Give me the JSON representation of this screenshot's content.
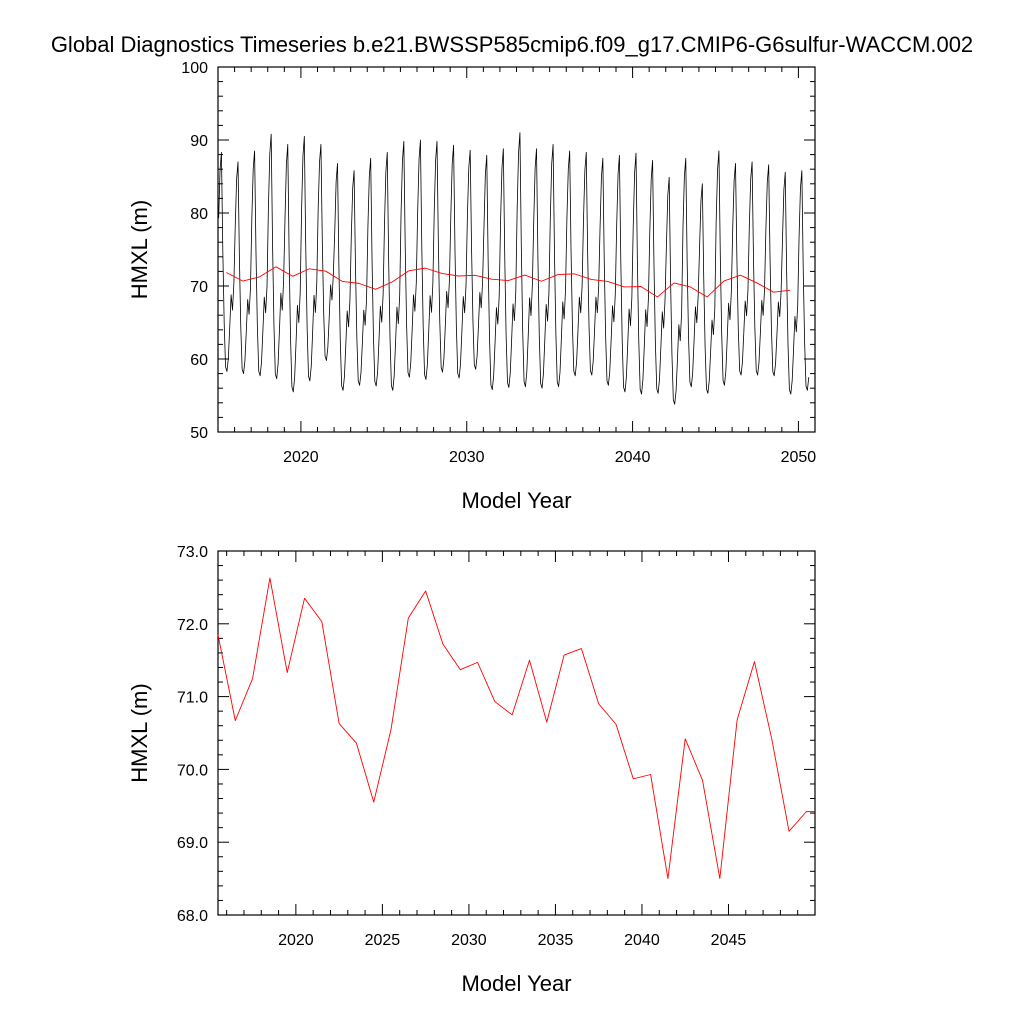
{
  "figure": {
    "title": "Global Diagnostics Timeseries b.e21.BWSSP585cmip6.f09_g17.CMIP6-G6sulfur-WACCM.002"
  },
  "chart_data": [
    {
      "type": "line",
      "title": "Global Diagnostics Timeseries b.e21.BWSSP585cmip6.f09_g17.CMIP6-G6sulfur-WACCM.002",
      "xlabel": "Model Year",
      "ylabel": "HMXL (m)",
      "xlim": [
        2015,
        2051
      ],
      "ylim": [
        50,
        100
      ],
      "xticks": [
        2020,
        2030,
        2040,
        2050
      ],
      "yticks": [
        50,
        60,
        70,
        80,
        90,
        100
      ],
      "ytick_labels": [
        "50",
        "60",
        "70",
        "80",
        "90",
        "100"
      ],
      "grid": false,
      "monthly_series": {
        "color": "#000000",
        "x_start": 2015.04,
        "x_step": 0.0833333,
        "description_values": "monthly values, annual cycle with winter maxima",
        "annual_maxima": [
          88.3,
          87.0,
          88.5,
          90.8,
          89.4,
          90.5,
          89.4,
          86.8,
          85.8,
          87.5,
          88.3,
          89.8,
          90.0,
          89.8,
          89.3,
          88.6,
          87.9,
          88.8,
          91.0,
          88.8,
          89.4,
          88.5,
          88.3,
          87.5,
          87.9,
          88.2,
          87.2,
          84.9,
          87.5,
          84.0,
          88.5,
          86.8,
          87.0,
          86.6,
          85.6,
          85.8
        ],
        "annual_minima": [
          58.3,
          58.0,
          57.7,
          57.3,
          55.5,
          57.0,
          59.8,
          55.7,
          56.4,
          56.3,
          55.7,
          57.5,
          57.2,
          58.2,
          57.4,
          58.6,
          55.8,
          56.1,
          56.2,
          56.0,
          56.2,
          57.7,
          57.8,
          56.4,
          55.5,
          55.2,
          55.3,
          53.8,
          56.2,
          55.3,
          56.4,
          57.8,
          57.8,
          57.7,
          55.2,
          55.7
        ]
      },
      "annual_mean_series": {
        "color": "#ff0000",
        "x": [
          2015.5,
          2016.5,
          2017.5,
          2018.5,
          2019.5,
          2020.5,
          2021.5,
          2022.5,
          2023.5,
          2024.5,
          2025.5,
          2026.5,
          2027.5,
          2028.5,
          2029.5,
          2030.5,
          2031.5,
          2032.5,
          2033.5,
          2034.5,
          2035.5,
          2036.5,
          2037.5,
          2038.5,
          2039.5,
          2040.5,
          2041.5,
          2042.5,
          2043.5,
          2044.5,
          2045.5,
          2046.5,
          2047.5,
          2048.5,
          2049.5
        ],
        "y": [
          71.85,
          70.67,
          71.25,
          72.63,
          71.33,
          72.35,
          72.03,
          70.63,
          70.36,
          69.55,
          70.55,
          72.08,
          72.45,
          71.72,
          71.37,
          71.47,
          70.93,
          70.75,
          71.5,
          70.65,
          71.57,
          71.66,
          70.9,
          70.62,
          69.87,
          69.93,
          68.5,
          70.42,
          69.85,
          68.5,
          70.68,
          71.48,
          70.42,
          69.15,
          69.42
        ]
      }
    },
    {
      "type": "line",
      "xlabel": "Model Year",
      "ylabel": "HMXL (m)",
      "xlim": [
        2015.5,
        2050.0
      ],
      "ylim": [
        68.0,
        73.0
      ],
      "xticks": [
        2020,
        2025,
        2030,
        2035,
        2040,
        2045
      ],
      "yticks": [
        68.0,
        69.0,
        70.0,
        71.0,
        72.0,
        73.0
      ],
      "ytick_labels": [
        "68.0",
        "69.0",
        "70.0",
        "71.0",
        "72.0",
        "73.0"
      ],
      "grid": false,
      "series": [
        {
          "color": "#ff0000",
          "x": [
            2015.5,
            2016.5,
            2017.5,
            2018.5,
            2019.5,
            2020.5,
            2021.5,
            2022.5,
            2023.5,
            2024.5,
            2025.5,
            2026.5,
            2027.5,
            2028.5,
            2029.5,
            2030.5,
            2031.5,
            2032.5,
            2033.5,
            2034.5,
            2035.5,
            2036.5,
            2037.5,
            2038.5,
            2039.5,
            2040.5,
            2041.5,
            2042.5,
            2043.5,
            2044.5,
            2045.5,
            2046.5,
            2047.5,
            2048.5,
            2049.5,
            2050.0
          ],
          "y": [
            71.85,
            70.67,
            71.25,
            72.63,
            71.33,
            72.35,
            72.03,
            70.63,
            70.36,
            69.55,
            70.55,
            72.08,
            72.45,
            71.72,
            71.37,
            71.47,
            70.93,
            70.75,
            71.5,
            70.65,
            71.57,
            71.66,
            70.9,
            70.62,
            69.87,
            69.93,
            68.5,
            70.42,
            69.85,
            68.5,
            70.68,
            71.48,
            70.42,
            69.15,
            69.42,
            69.42
          ]
        }
      ]
    }
  ]
}
